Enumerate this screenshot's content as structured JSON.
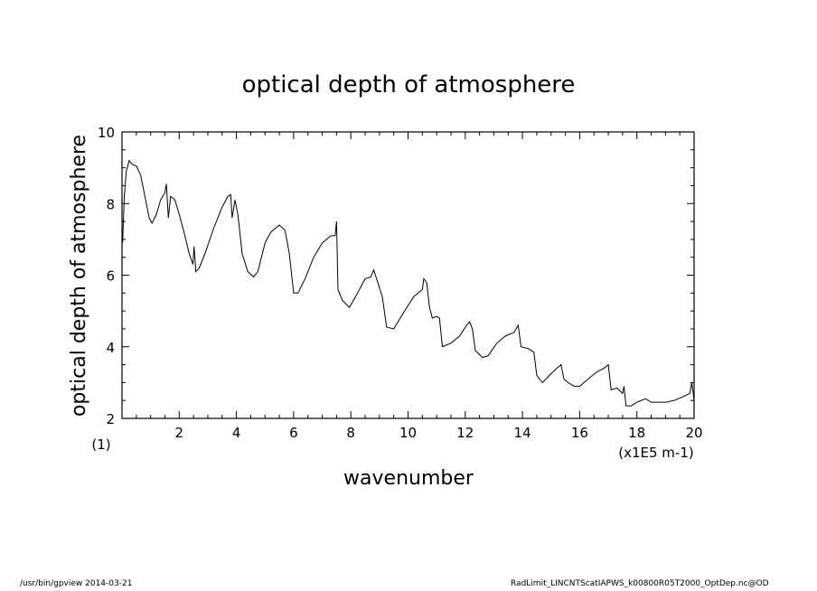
{
  "chart_data": {
    "type": "line",
    "title": "optical depth of atmosphere",
    "xlabel": "wavenumber",
    "ylabel": "optical depth of atmosphere",
    "x_unit_label": "(x1E5 m-1)",
    "y_unit_label": "(1)",
    "xlim": [
      0,
      20
    ],
    "ylim": [
      2,
      10
    ],
    "x_ticks": [
      2,
      4,
      6,
      8,
      10,
      12,
      14,
      16,
      18,
      20
    ],
    "y_ticks": [
      2,
      4,
      6,
      8,
      10
    ],
    "grid": false,
    "series": [
      {
        "points": [
          [
            0.02,
            6.9
          ],
          [
            0.08,
            8.2
          ],
          [
            0.15,
            8.9
          ],
          [
            0.25,
            9.2
          ],
          [
            0.35,
            9.1
          ],
          [
            0.5,
            9.05
          ],
          [
            0.65,
            8.8
          ],
          [
            0.8,
            8.2
          ],
          [
            0.95,
            7.6
          ],
          [
            1.05,
            7.45
          ],
          [
            1.2,
            7.7
          ],
          [
            1.35,
            8.1
          ],
          [
            1.5,
            8.3
          ],
          [
            1.55,
            8.55
          ],
          [
            1.62,
            7.6
          ],
          [
            1.7,
            8.2
          ],
          [
            1.85,
            8.1
          ],
          [
            2.0,
            7.7
          ],
          [
            2.2,
            7.1
          ],
          [
            2.35,
            6.6
          ],
          [
            2.48,
            6.3
          ],
          [
            2.52,
            6.8
          ],
          [
            2.58,
            6.1
          ],
          [
            2.7,
            6.2
          ],
          [
            2.9,
            6.6
          ],
          [
            3.2,
            7.3
          ],
          [
            3.5,
            7.9
          ],
          [
            3.7,
            8.2
          ],
          [
            3.8,
            8.25
          ],
          [
            3.85,
            7.6
          ],
          [
            3.95,
            8.1
          ],
          [
            4.05,
            7.7
          ],
          [
            4.2,
            6.6
          ],
          [
            4.4,
            6.1
          ],
          [
            4.6,
            5.95
          ],
          [
            4.75,
            6.1
          ],
          [
            5.0,
            6.9
          ],
          [
            5.2,
            7.2
          ],
          [
            5.5,
            7.4
          ],
          [
            5.7,
            7.25
          ],
          [
            5.85,
            6.6
          ],
          [
            6.0,
            5.5
          ],
          [
            6.15,
            5.5
          ],
          [
            6.4,
            5.9
          ],
          [
            6.7,
            6.5
          ],
          [
            7.0,
            6.9
          ],
          [
            7.3,
            7.1
          ],
          [
            7.45,
            7.1
          ],
          [
            7.5,
            7.5
          ],
          [
            7.55,
            5.6
          ],
          [
            7.7,
            5.3
          ],
          [
            7.95,
            5.1
          ],
          [
            8.2,
            5.45
          ],
          [
            8.5,
            5.9
          ],
          [
            8.7,
            5.95
          ],
          [
            8.8,
            6.15
          ],
          [
            8.9,
            5.9
          ],
          [
            9.1,
            5.4
          ],
          [
            9.25,
            4.55
          ],
          [
            9.5,
            4.5
          ],
          [
            9.8,
            4.9
          ],
          [
            10.2,
            5.4
          ],
          [
            10.5,
            5.6
          ],
          [
            10.55,
            5.9
          ],
          [
            10.65,
            5.8
          ],
          [
            10.75,
            5.1
          ],
          [
            10.85,
            4.8
          ],
          [
            11.0,
            4.85
          ],
          [
            11.1,
            4.8
          ],
          [
            11.2,
            4.0
          ],
          [
            11.5,
            4.1
          ],
          [
            11.8,
            4.3
          ],
          [
            12.05,
            4.6
          ],
          [
            12.15,
            4.7
          ],
          [
            12.25,
            4.5
          ],
          [
            12.35,
            3.9
          ],
          [
            12.6,
            3.7
          ],
          [
            12.8,
            3.75
          ],
          [
            13.1,
            4.1
          ],
          [
            13.4,
            4.3
          ],
          [
            13.7,
            4.4
          ],
          [
            13.85,
            4.6
          ],
          [
            13.95,
            4.0
          ],
          [
            14.2,
            3.95
          ],
          [
            14.4,
            3.85
          ],
          [
            14.5,
            3.2
          ],
          [
            14.7,
            3.0
          ],
          [
            15.0,
            3.25
          ],
          [
            15.2,
            3.4
          ],
          [
            15.35,
            3.5
          ],
          [
            15.45,
            3.1
          ],
          [
            15.6,
            3.0
          ],
          [
            15.8,
            2.9
          ],
          [
            16.0,
            2.9
          ],
          [
            16.3,
            3.1
          ],
          [
            16.6,
            3.3
          ],
          [
            16.85,
            3.4
          ],
          [
            17.0,
            3.5
          ],
          [
            17.1,
            2.8
          ],
          [
            17.3,
            2.85
          ],
          [
            17.5,
            2.7
          ],
          [
            17.55,
            2.9
          ],
          [
            17.62,
            2.35
          ],
          [
            17.8,
            2.35
          ],
          [
            18.0,
            2.45
          ],
          [
            18.3,
            2.55
          ],
          [
            18.5,
            2.45
          ],
          [
            18.7,
            2.45
          ],
          [
            19.0,
            2.45
          ],
          [
            19.3,
            2.5
          ],
          [
            19.6,
            2.6
          ],
          [
            19.85,
            2.7
          ],
          [
            19.92,
            3.0
          ],
          [
            20.0,
            2.5
          ]
        ]
      }
    ]
  },
  "footer": {
    "left": "/usr/bin/gpview   2014-03-21",
    "right": "RadLimit_LINCNTScatIAPWS_k00800R05T2000_OptDep.nc@OD"
  }
}
